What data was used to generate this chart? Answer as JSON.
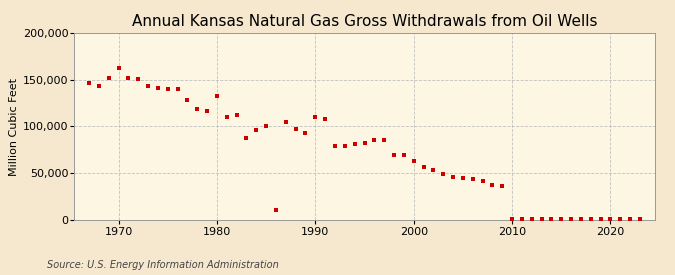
{
  "title": "Annual Kansas Natural Gas Gross Withdrawals from Oil Wells",
  "ylabel": "Million Cubic Feet",
  "source": "Source: U.S. Energy Information Administration",
  "bg_color": "#f5e8ce",
  "plot_bg_color": "#fdf6e3",
  "marker_color": "#cc0000",
  "grid_color": "#bbbbbb",
  "years": [
    1967,
    1968,
    1969,
    1970,
    1971,
    1972,
    1973,
    1974,
    1975,
    1976,
    1977,
    1978,
    1979,
    1980,
    1981,
    1982,
    1983,
    1984,
    1985,
    1986,
    1987,
    1988,
    1989,
    1990,
    1991,
    1992,
    1993,
    1994,
    1995,
    1996,
    1997,
    1998,
    1999,
    2000,
    2001,
    2002,
    2003,
    2004,
    2005,
    2006,
    2007,
    2008,
    2009,
    2010,
    2011,
    2012,
    2013,
    2014,
    2015,
    2016,
    2017,
    2018,
    2019,
    2020,
    2021,
    2022,
    2023
  ],
  "values": [
    147000,
    143000,
    152000,
    163000,
    152000,
    151000,
    143000,
    141000,
    140000,
    140000,
    128000,
    119000,
    117000,
    133000,
    110000,
    112000,
    88000,
    96000,
    100000,
    10500,
    105000,
    97000,
    93000,
    110000,
    108000,
    79000,
    79000,
    81000,
    82000,
    86000,
    86000,
    70000,
    69000,
    63000,
    57000,
    54000,
    49000,
    46000,
    45000,
    44000,
    42000,
    37500,
    36500,
    1500,
    1500,
    1500,
    1500,
    1500,
    1500,
    1500,
    1500,
    1500,
    1500,
    1500,
    1500,
    1500,
    1500
  ],
  "ylim": [
    0,
    200000
  ],
  "xlim": [
    1965.5,
    2024.5
  ],
  "yticks": [
    0,
    50000,
    100000,
    150000,
    200000
  ],
  "xticks": [
    1970,
    1980,
    1990,
    2000,
    2010,
    2020
  ],
  "title_fontsize": 11,
  "label_fontsize": 8,
  "tick_fontsize": 8,
  "source_fontsize": 7
}
